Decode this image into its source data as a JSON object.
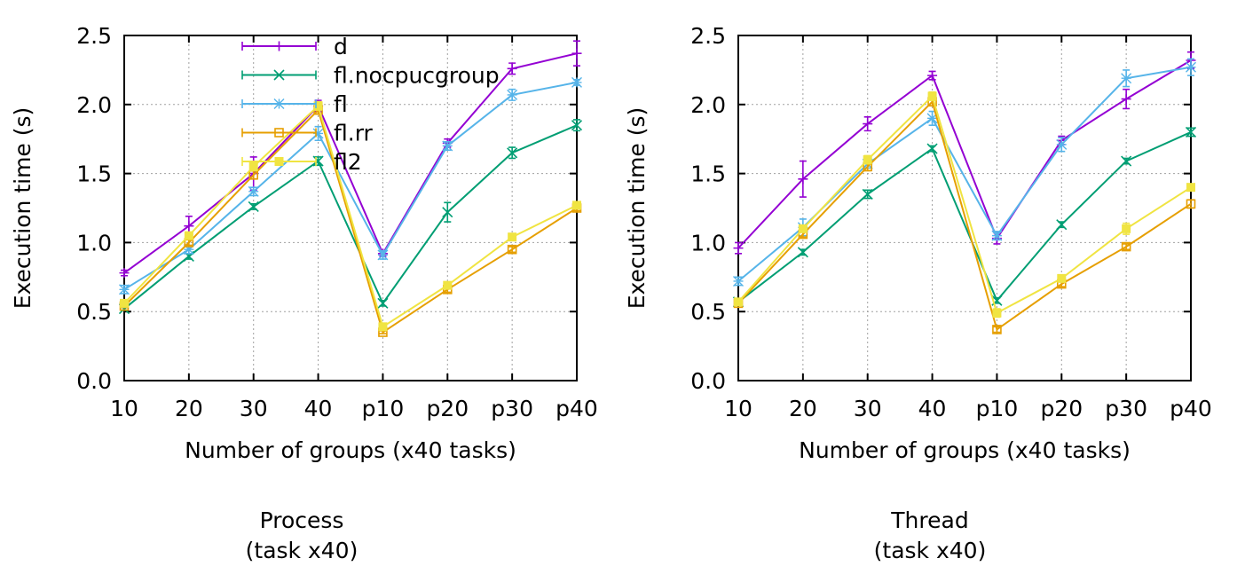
{
  "chart_data": [
    {
      "type": "line",
      "title": "",
      "xlabel": "Number of groups (x40 tasks)",
      "ylabel": "Execution time (s)",
      "categories": [
        "10",
        "20",
        "30",
        "40",
        "p10",
        "p20",
        "p30",
        "p40"
      ],
      "yticks": [
        "0.0",
        "0.5",
        "1.0",
        "1.5",
        "2.0",
        "2.5"
      ],
      "ylim": [
        0,
        2.5
      ],
      "grid": true,
      "legend_position": "top-left",
      "caption": [
        "Process",
        "(task x40)"
      ],
      "series": [
        {
          "name": "d",
          "color": "#9400d3",
          "marker": "plus",
          "values": [
            0.78,
            1.12,
            1.5,
            1.99,
            0.92,
            1.72,
            2.26,
            2.37
          ],
          "errors": [
            0.02,
            0.07,
            0.12,
            0.04,
            0.02,
            0.03,
            0.04,
            0.09
          ]
        },
        {
          "name": "fl.nocpucgroup",
          "color": "#009e73",
          "marker": "cross",
          "values": [
            0.52,
            0.9,
            1.26,
            1.59,
            0.56,
            1.22,
            1.65,
            1.85
          ],
          "errors": [
            0.01,
            0.02,
            0.02,
            0.03,
            0.02,
            0.07,
            0.04,
            0.04
          ]
        },
        {
          "name": "fl",
          "color": "#56b4e9",
          "marker": "star",
          "values": [
            0.66,
            0.95,
            1.37,
            1.79,
            0.91,
            1.7,
            2.07,
            2.16
          ],
          "errors": [
            0.03,
            0.03,
            0.03,
            0.05,
            0.03,
            0.03,
            0.04,
            0.02
          ]
        },
        {
          "name": "fl.rr",
          "color": "#e69f00",
          "marker": "box",
          "values": [
            0.54,
            1.0,
            1.49,
            1.96,
            0.35,
            0.66,
            0.95,
            1.25
          ],
          "errors": [
            0.01,
            0.02,
            0.03,
            0.03,
            0.01,
            0.02,
            0.02,
            0.02
          ]
        },
        {
          "name": "fl2",
          "color": "#f0e442",
          "marker": "filledbox",
          "values": [
            0.56,
            1.05,
            1.55,
            1.99,
            0.39,
            0.69,
            1.04,
            1.27
          ],
          "errors": [
            0.02,
            0.02,
            0.03,
            0.03,
            0.02,
            0.02,
            0.02,
            0.02
          ]
        }
      ]
    },
    {
      "type": "line",
      "title": "",
      "xlabel": "Number of groups (x40 tasks)",
      "ylabel": "Execution time (s)",
      "categories": [
        "10",
        "20",
        "30",
        "40",
        "p10",
        "p20",
        "p30",
        "p40"
      ],
      "yticks": [
        "0.0",
        "0.5",
        "1.0",
        "1.5",
        "2.0",
        "2.5"
      ],
      "ylim": [
        0,
        2.5
      ],
      "grid": true,
      "legend_position": "none",
      "caption": [
        "Thread",
        "(task x40)"
      ],
      "series": [
        {
          "name": "d",
          "color": "#9400d3",
          "marker": "plus",
          "values": [
            0.96,
            1.46,
            1.86,
            2.21,
            1.03,
            1.74,
            2.04,
            2.32
          ],
          "errors": [
            0.04,
            0.13,
            0.05,
            0.03,
            0.04,
            0.03,
            0.07,
            0.06
          ]
        },
        {
          "name": "fl.nocpucgroup",
          "color": "#009e73",
          "marker": "cross",
          "values": [
            0.57,
            0.93,
            1.35,
            1.68,
            0.58,
            1.13,
            1.59,
            1.8
          ],
          "errors": [
            0.01,
            0.02,
            0.03,
            0.02,
            0.02,
            0.02,
            0.02,
            0.03
          ]
        },
        {
          "name": "fl",
          "color": "#56b4e9",
          "marker": "star",
          "values": [
            0.72,
            1.11,
            1.57,
            1.9,
            1.05,
            1.71,
            2.19,
            2.27
          ],
          "errors": [
            0.03,
            0.06,
            0.03,
            0.05,
            0.03,
            0.05,
            0.06,
            0.06
          ]
        },
        {
          "name": "fl.rr",
          "color": "#e69f00",
          "marker": "box",
          "values": [
            0.56,
            1.06,
            1.55,
            2.02,
            0.37,
            0.7,
            0.97,
            1.28
          ],
          "errors": [
            0.01,
            0.02,
            0.03,
            0.03,
            0.02,
            0.02,
            0.02,
            0.03
          ]
        },
        {
          "name": "fl2",
          "color": "#f0e442",
          "marker": "filledbox",
          "values": [
            0.57,
            1.1,
            1.6,
            2.06,
            0.49,
            0.74,
            1.1,
            1.4
          ],
          "errors": [
            0.02,
            0.02,
            0.03,
            0.03,
            0.03,
            0.02,
            0.04,
            0.02
          ]
        }
      ]
    }
  ]
}
